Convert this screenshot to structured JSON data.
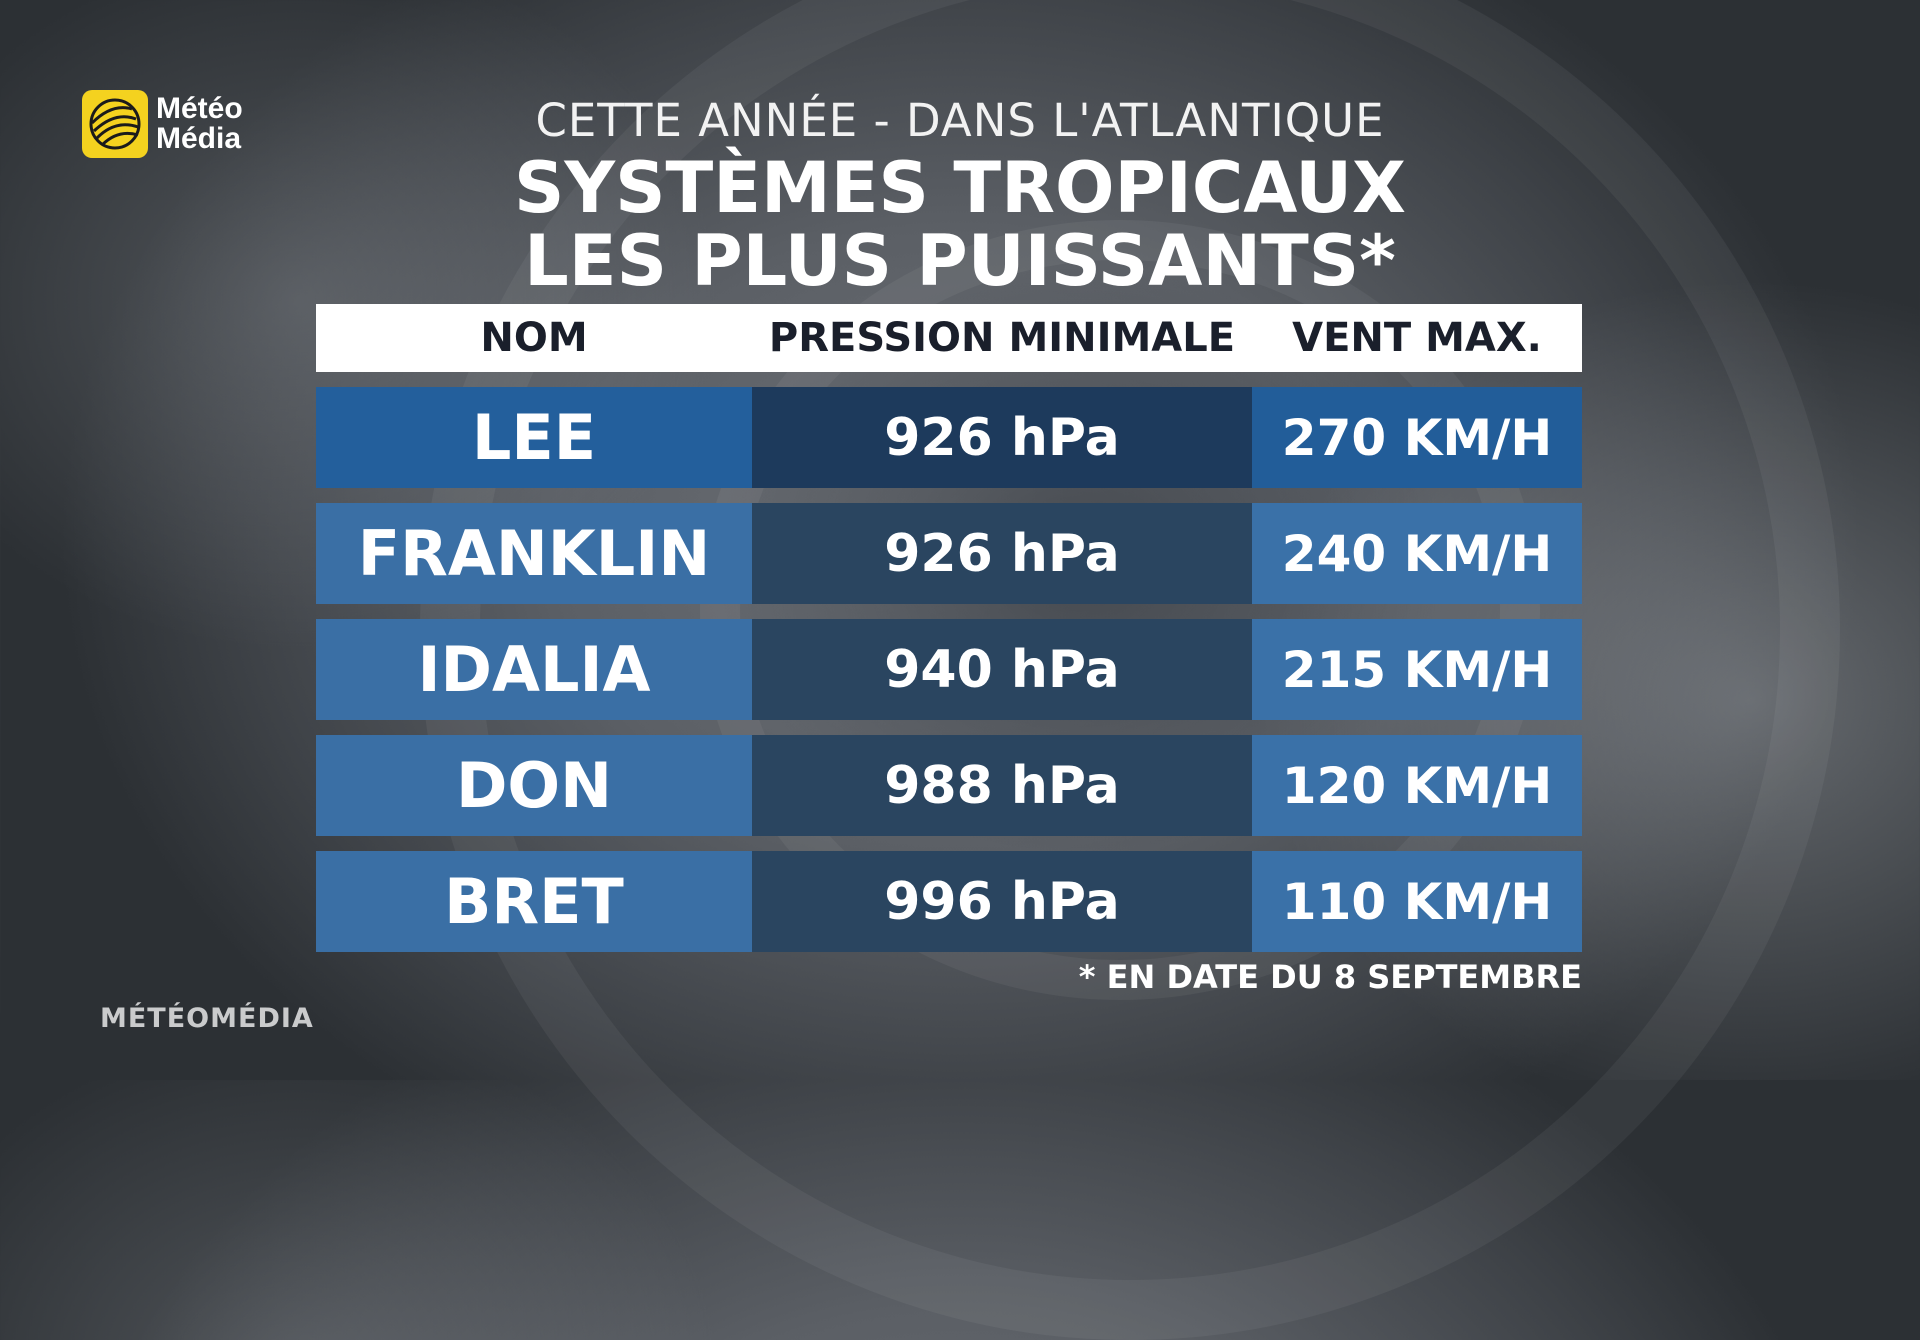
{
  "logo": {
    "line1": "Météo",
    "line2": "Média",
    "brand_color": "#f4d21f",
    "icon": "globe-icon"
  },
  "header": {
    "subtitle": "CETTE ANNÉE - DANS L'ATLANTIQUE",
    "title_line1": "SYSTÈMES TROPICAUX",
    "title_line2": "LES PLUS PUISSANTS*"
  },
  "table": {
    "columns": [
      "NOM",
      "PRESSION MINIMALE",
      "VENT MAX."
    ],
    "rows": [
      {
        "name": "LEE",
        "pressure": "926 hPa",
        "wind": "270 KM/H"
      },
      {
        "name": "FRANKLIN",
        "pressure": "926 hPa",
        "wind": "240 KM/H"
      },
      {
        "name": "IDALIA",
        "pressure": "940 hPa",
        "wind": "215 KM/H"
      },
      {
        "name": "DON",
        "pressure": "988 hPa",
        "wind": "120 KM/H"
      },
      {
        "name": "BRET",
        "pressure": "996 hPa",
        "wind": "110 KM/H"
      }
    ],
    "colors": {
      "name_first": "#235f9c",
      "name_other": "#3a6fa5",
      "pressure_first": "#1d3a5c",
      "pressure_other": "#2a4560",
      "wind_first": "#225d99",
      "wind_other": "#3a71a8",
      "header_bg": "#ffffff",
      "header_text": "#1a1f2b"
    }
  },
  "footnote": "* EN DATE DU 8 SEPTEMBRE",
  "watermark": "MÉTÉOMÉDIA"
}
